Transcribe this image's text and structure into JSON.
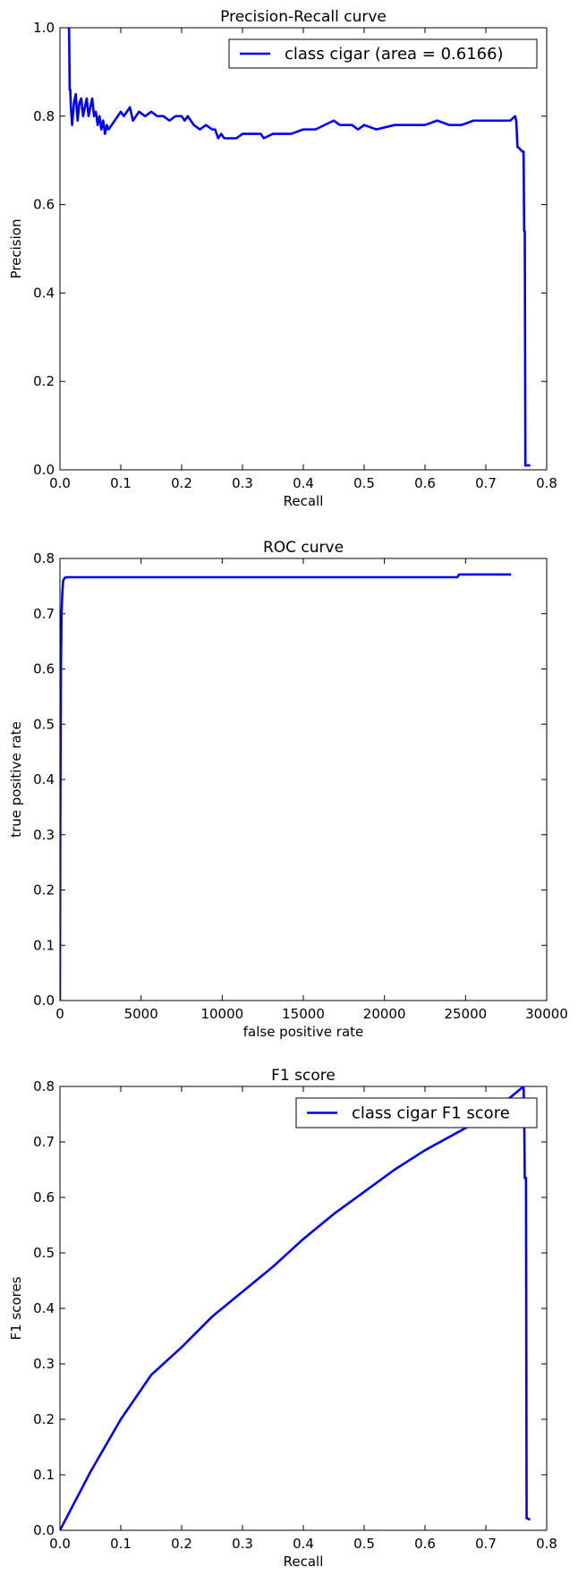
{
  "chart_data": [
    {
      "type": "line",
      "title": "Precision-Recall curve",
      "xlabel": "Recall",
      "ylabel": "Precision",
      "xlim": [
        0.0,
        0.8
      ],
      "ylim": [
        0.0,
        1.0
      ],
      "xticks": [
        "0.0",
        "0.1",
        "0.2",
        "0.3",
        "0.4",
        "0.5",
        "0.6",
        "0.7",
        "0.8"
      ],
      "yticks": [
        "0.0",
        "0.2",
        "0.4",
        "0.6",
        "0.8",
        "1.0"
      ],
      "grid": false,
      "legend": "top-right",
      "series": [
        {
          "name": "class cigar (area = 0.6166)",
          "color": "#0000ff",
          "x": [
            0.012,
            0.015,
            0.016,
            0.017,
            0.018,
            0.02,
            0.023,
            0.026,
            0.029,
            0.032,
            0.035,
            0.038,
            0.041,
            0.044,
            0.047,
            0.05,
            0.053,
            0.056,
            0.059,
            0.062,
            0.065,
            0.068,
            0.071,
            0.074,
            0.077,
            0.08,
            0.085,
            0.095,
            0.1,
            0.105,
            0.11,
            0.115,
            0.12,
            0.125,
            0.13,
            0.14,
            0.15,
            0.16,
            0.17,
            0.18,
            0.19,
            0.2,
            0.205,
            0.21,
            0.215,
            0.22,
            0.23,
            0.24,
            0.25,
            0.255,
            0.26,
            0.265,
            0.27,
            0.28,
            0.29,
            0.3,
            0.31,
            0.32,
            0.33,
            0.335,
            0.35,
            0.38,
            0.4,
            0.42,
            0.45,
            0.46,
            0.47,
            0.48,
            0.49,
            0.5,
            0.52,
            0.55,
            0.57,
            0.58,
            0.6,
            0.62,
            0.64,
            0.66,
            0.68,
            0.7,
            0.72,
            0.74,
            0.748,
            0.75,
            0.752,
            0.753,
            0.76,
            0.762,
            0.763,
            0.764,
            0.765,
            0.766,
            0.767,
            0.768,
            0.77,
            0.773
          ],
          "y": [
            1.0,
            1.0,
            0.86,
            0.86,
            0.82,
            0.78,
            0.83,
            0.85,
            0.79,
            0.83,
            0.84,
            0.8,
            0.82,
            0.84,
            0.8,
            0.82,
            0.84,
            0.8,
            0.81,
            0.78,
            0.8,
            0.77,
            0.79,
            0.76,
            0.78,
            0.77,
            0.78,
            0.8,
            0.81,
            0.8,
            0.81,
            0.82,
            0.79,
            0.8,
            0.81,
            0.8,
            0.81,
            0.8,
            0.8,
            0.79,
            0.8,
            0.8,
            0.79,
            0.8,
            0.79,
            0.78,
            0.77,
            0.78,
            0.77,
            0.77,
            0.75,
            0.76,
            0.75,
            0.75,
            0.75,
            0.76,
            0.76,
            0.76,
            0.76,
            0.75,
            0.76,
            0.76,
            0.77,
            0.77,
            0.79,
            0.78,
            0.78,
            0.78,
            0.77,
            0.78,
            0.77,
            0.78,
            0.78,
            0.78,
            0.78,
            0.79,
            0.78,
            0.78,
            0.79,
            0.79,
            0.79,
            0.79,
            0.8,
            0.79,
            0.73,
            0.73,
            0.72,
            0.72,
            0.54,
            0.54,
            0.01,
            0.01,
            0.01,
            0.01,
            0.01,
            0.01
          ]
        }
      ]
    },
    {
      "type": "line",
      "title": "ROC curve",
      "xlabel": "false positive rate",
      "ylabel": "true positive rate",
      "xlim": [
        0,
        30000
      ],
      "ylim": [
        0.0,
        0.8
      ],
      "xticks": [
        "0",
        "5000",
        "10000",
        "15000",
        "20000",
        "25000",
        "30000"
      ],
      "yticks": [
        "0.0",
        "0.1",
        "0.2",
        "0.3",
        "0.4",
        "0.5",
        "0.6",
        "0.7",
        "0.8"
      ],
      "grid": false,
      "series": [
        {
          "color": "#0000ff",
          "x": [
            0,
            20,
            60,
            100,
            150,
            200,
            300,
            400,
            1000,
            5000,
            10000,
            15000,
            20000,
            24500,
            24600,
            25000,
            27000,
            27800
          ],
          "y": [
            0.0,
            0.3,
            0.6,
            0.7,
            0.74,
            0.76,
            0.765,
            0.766,
            0.766,
            0.766,
            0.766,
            0.766,
            0.766,
            0.766,
            0.771,
            0.771,
            0.771,
            0.771
          ]
        }
      ]
    },
    {
      "type": "line",
      "title": "F1 score",
      "xlabel": "Recall",
      "ylabel": "F1 scores",
      "xlim": [
        0.0,
        0.8
      ],
      "ylim": [
        0.0,
        0.8
      ],
      "xticks": [
        "0.0",
        "0.1",
        "0.2",
        "0.3",
        "0.4",
        "0.5",
        "0.6",
        "0.7",
        "0.8"
      ],
      "yticks": [
        "0.0",
        "0.1",
        "0.2",
        "0.3",
        "0.4",
        "0.5",
        "0.6",
        "0.7",
        "0.8"
      ],
      "grid": false,
      "legend": "top-right",
      "series": [
        {
          "name": "class cigar F1 score",
          "color": "#0000ff",
          "x": [
            0.0,
            0.05,
            0.1,
            0.15,
            0.2,
            0.25,
            0.3,
            0.35,
            0.4,
            0.45,
            0.5,
            0.55,
            0.6,
            0.65,
            0.68,
            0.7,
            0.74,
            0.762,
            0.763,
            0.764,
            0.765,
            0.766,
            0.767,
            0.768,
            0.77,
            0.773
          ],
          "y": [
            0.0,
            0.105,
            0.2,
            0.28,
            0.33,
            0.385,
            0.43,
            0.475,
            0.525,
            0.57,
            0.61,
            0.65,
            0.685,
            0.715,
            0.733,
            0.75,
            0.78,
            0.8,
            0.75,
            0.635,
            0.635,
            0.635,
            0.022,
            0.022,
            0.02,
            0.02
          ]
        }
      ]
    }
  ]
}
